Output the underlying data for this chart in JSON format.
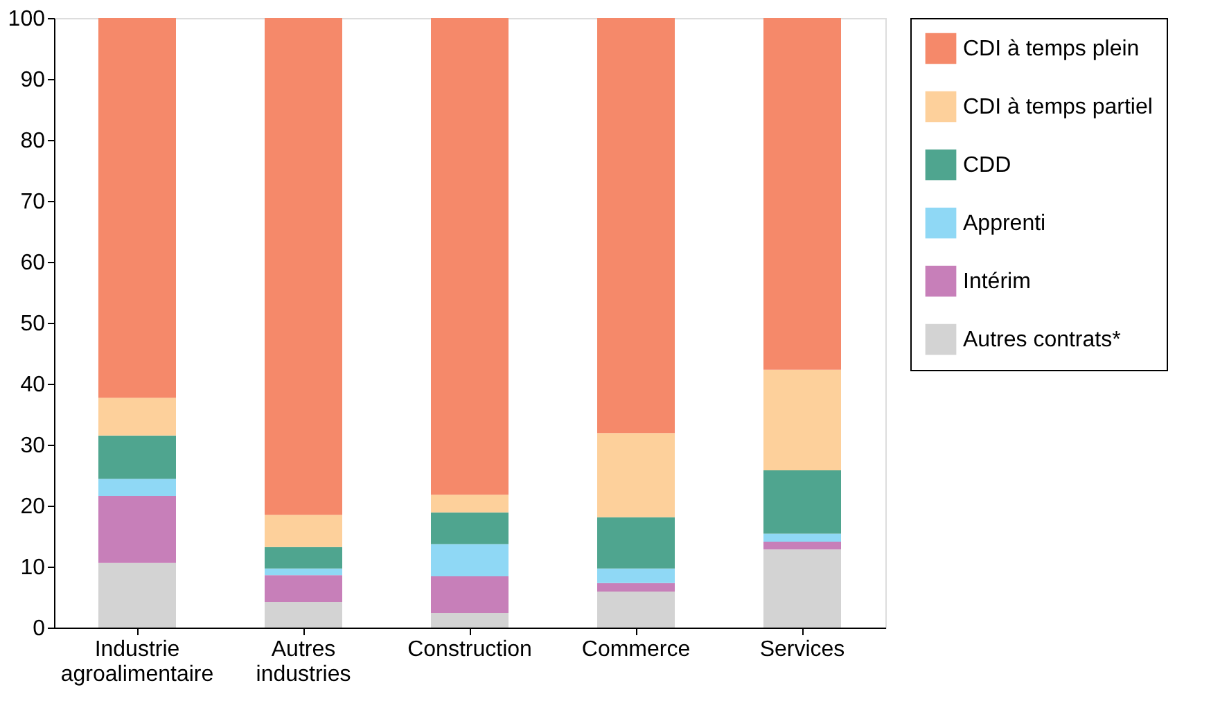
{
  "chart_data": {
    "type": "bar",
    "stacked": true,
    "categories": [
      "Industrie agroalimentaire",
      "Autres industries",
      "Construction",
      "Commerce",
      "Services"
    ],
    "series": [
      {
        "name": "Autres contrats*",
        "color": "#d3d3d3",
        "values": [
          10.6,
          4.2,
          2.4,
          5.9,
          12.8
        ]
      },
      {
        "name": "Intérim",
        "color": "#c77fb9",
        "values": [
          11.0,
          4.4,
          6.0,
          1.4,
          1.3
        ]
      },
      {
        "name": "Apprenti",
        "color": "#8fd8f5",
        "values": [
          2.8,
          1.1,
          5.3,
          2.4,
          1.3
        ]
      },
      {
        "name": "CDD",
        "color": "#4fa58f",
        "values": [
          7.1,
          3.5,
          5.2,
          8.4,
          10.4
        ]
      },
      {
        "name": "CDI à temps partiel",
        "color": "#fdd09b",
        "values": [
          6.2,
          5.3,
          2.9,
          13.8,
          16.5
        ]
      },
      {
        "name": "CDI à temps plein",
        "color": "#f5896a",
        "values": [
          62.3,
          81.5,
          78.2,
          68.1,
          57.7
        ]
      }
    ],
    "ylim": [
      0,
      100
    ],
    "yticks": [
      0,
      10,
      20,
      30,
      40,
      50,
      60,
      70,
      80,
      90,
      100
    ],
    "grid": false,
    "legend": "right"
  }
}
